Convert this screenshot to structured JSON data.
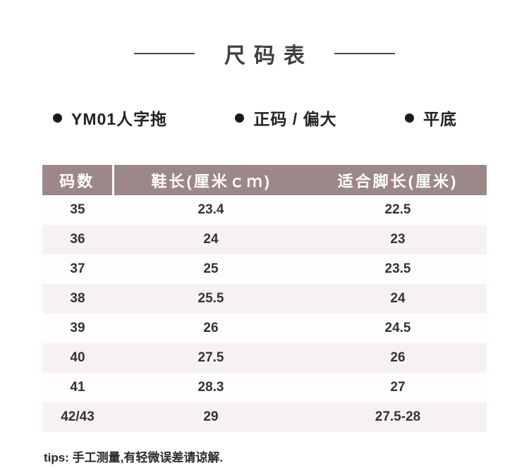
{
  "header": {
    "title": "尺码表"
  },
  "bullets": [
    {
      "label": "YM01人字拖"
    },
    {
      "label": "正码 / 偏大"
    },
    {
      "label": "平底"
    }
  ],
  "chart_data": {
    "type": "table",
    "title": "尺码表",
    "columns": [
      "码数",
      "鞋长(厘米ｃｍ)",
      "适合脚长(厘米)"
    ],
    "rows": [
      [
        "35",
        "23.4",
        "22.5"
      ],
      [
        "36",
        "24",
        "23"
      ],
      [
        "37",
        "25",
        "23.5"
      ],
      [
        "38",
        "25.5",
        "24"
      ],
      [
        "39",
        "26",
        "24.5"
      ],
      [
        "40",
        "27.5",
        "26"
      ],
      [
        "41",
        "28.3",
        "27"
      ],
      [
        "42/43",
        "29",
        "27.5-28"
      ]
    ]
  },
  "footer": {
    "tip": "tips: 手工测量,有轻微误差请谅解."
  },
  "colors": {
    "header_bg": "#9c8888",
    "row_alt_bg": "#f7f2f2",
    "row_bg": "#fffdfd"
  }
}
